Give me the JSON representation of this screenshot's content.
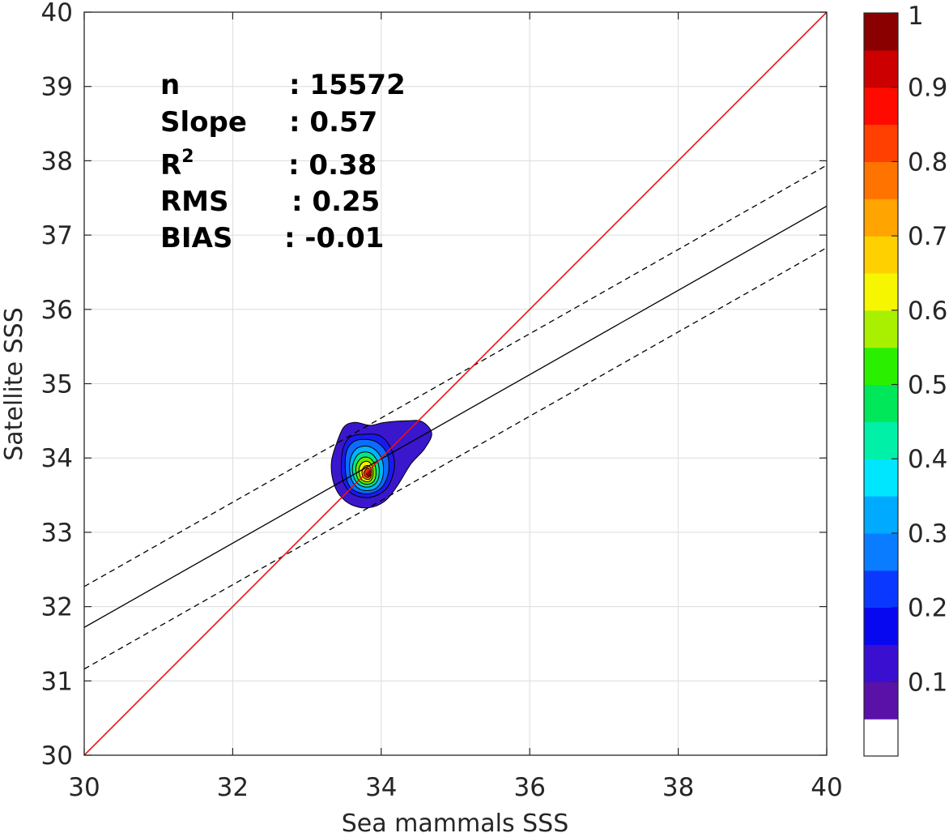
{
  "chart_data": {
    "type": "contour",
    "xlabel": "Sea mammals  SSS",
    "ylabel": "Satellite SSS",
    "xlim": [
      30,
      40
    ],
    "ylim": [
      30,
      40
    ],
    "x_ticks": [
      "30",
      "32",
      "34",
      "36",
      "38",
      "40"
    ],
    "y_ticks": [
      "30",
      "31",
      "32",
      "33",
      "34",
      "35",
      "36",
      "37",
      "38",
      "39",
      "40"
    ],
    "grid": true,
    "stats": [
      {
        "label": "n",
        "value": ": 15572"
      },
      {
        "label": "Slope",
        "value": ": 0.57"
      },
      {
        "label": "R",
        "sup": "2",
        "value": ": 0.38"
      },
      {
        "label": "RMS",
        "value": ": 0.25"
      },
      {
        "label": "BIAS",
        "value": ": -0.01"
      }
    ],
    "lines": {
      "identity": {
        "color": "#e3141c",
        "points": [
          [
            30,
            30
          ],
          [
            40,
            40
          ]
        ]
      },
      "fit": {
        "color": "#000000",
        "points": [
          [
            30,
            31.72
          ],
          [
            40,
            37.39
          ]
        ]
      },
      "fit_upper": {
        "color": "#000000",
        "dashed": true,
        "points": [
          [
            30,
            32.27
          ],
          [
            40,
            37.94
          ]
        ]
      },
      "fit_lower": {
        "color": "#000000",
        "dashed": true,
        "points": [
          [
            30,
            31.16
          ],
          [
            40,
            36.83
          ]
        ]
      }
    },
    "density_peak": {
      "x": 33.85,
      "y": 33.8
    },
    "contour_levels": [
      {
        "level": 0.05,
        "color": "#3a17cc",
        "outline": [
          [
            33.4,
            34.2
          ],
          [
            33.5,
            34.42
          ],
          [
            33.65,
            34.48
          ],
          [
            33.85,
            34.44
          ],
          [
            34.05,
            34.48
          ],
          [
            34.35,
            34.5
          ],
          [
            34.55,
            34.49
          ],
          [
            34.68,
            34.33
          ],
          [
            34.58,
            34.12
          ],
          [
            34.4,
            33.92
          ],
          [
            34.22,
            33.63
          ],
          [
            34.05,
            33.42
          ],
          [
            33.83,
            33.33
          ],
          [
            33.6,
            33.37
          ],
          [
            33.44,
            33.5
          ],
          [
            33.35,
            33.7
          ],
          [
            33.33,
            33.95
          ]
        ]
      },
      {
        "level": 0.15,
        "color": "#1a1aee",
        "outline": [
          [
            33.48,
            34.1
          ],
          [
            33.58,
            34.28
          ],
          [
            33.78,
            34.32
          ],
          [
            33.98,
            34.3
          ],
          [
            34.12,
            34.15
          ],
          [
            34.18,
            33.9
          ],
          [
            34.1,
            33.63
          ],
          [
            33.95,
            33.5
          ],
          [
            33.75,
            33.47
          ],
          [
            33.57,
            33.55
          ],
          [
            33.47,
            33.75
          ]
        ]
      },
      {
        "level": 0.25,
        "color": "#0a6dff",
        "outline": [
          [
            33.53,
            34.08
          ],
          [
            33.63,
            34.22
          ],
          [
            33.8,
            34.25
          ],
          [
            33.96,
            34.2
          ],
          [
            34.08,
            34.05
          ],
          [
            34.1,
            33.82
          ],
          [
            34.02,
            33.62
          ],
          [
            33.88,
            33.53
          ],
          [
            33.72,
            33.53
          ],
          [
            33.58,
            33.61
          ],
          [
            33.52,
            33.8
          ]
        ]
      },
      {
        "level": 0.35,
        "color": "#00b4ff",
        "outline": [
          [
            33.58,
            33.97
          ],
          [
            33.66,
            34.12
          ],
          [
            33.8,
            34.16
          ],
          [
            33.93,
            34.1
          ],
          [
            34.02,
            33.95
          ],
          [
            34.02,
            33.74
          ],
          [
            33.94,
            33.6
          ],
          [
            33.81,
            33.56
          ],
          [
            33.68,
            33.6
          ],
          [
            33.59,
            33.74
          ]
        ]
      },
      {
        "level": 0.45,
        "color": "#00e887",
        "outline": [
          [
            33.62,
            33.92
          ],
          [
            33.69,
            34.05
          ],
          [
            33.81,
            34.08
          ],
          [
            33.91,
            34.02
          ],
          [
            33.97,
            33.88
          ],
          [
            33.96,
            33.72
          ],
          [
            33.89,
            33.63
          ],
          [
            33.78,
            33.61
          ],
          [
            33.68,
            33.66
          ],
          [
            33.62,
            33.78
          ]
        ]
      },
      {
        "level": 0.55,
        "color": "#6fe800",
        "outline": [
          [
            33.66,
            33.88
          ],
          [
            33.72,
            33.99
          ],
          [
            33.82,
            34.01
          ],
          [
            33.9,
            33.94
          ],
          [
            33.93,
            33.82
          ],
          [
            33.91,
            33.7
          ],
          [
            33.84,
            33.65
          ],
          [
            33.75,
            33.66
          ],
          [
            33.68,
            33.73
          ]
        ]
      },
      {
        "level": 0.65,
        "color": "#f2ef00",
        "outline": [
          [
            33.7,
            33.85
          ],
          [
            33.75,
            33.94
          ],
          [
            33.83,
            33.95
          ],
          [
            33.88,
            33.88
          ],
          [
            33.89,
            33.78
          ],
          [
            33.86,
            33.7
          ],
          [
            33.8,
            33.68
          ],
          [
            33.73,
            33.72
          ]
        ]
      },
      {
        "level": 0.75,
        "color": "#ff9a00",
        "outline": [
          [
            33.74,
            33.82
          ],
          [
            33.78,
            33.89
          ],
          [
            33.84,
            33.89
          ],
          [
            33.87,
            33.83
          ],
          [
            33.86,
            33.74
          ],
          [
            33.82,
            33.71
          ],
          [
            33.76,
            33.74
          ]
        ]
      },
      {
        "level": 0.85,
        "color": "#ff3a00",
        "outline": [
          [
            33.77,
            33.8
          ],
          [
            33.81,
            33.86
          ],
          [
            33.85,
            33.84
          ],
          [
            33.86,
            33.78
          ],
          [
            33.83,
            33.74
          ],
          [
            33.79,
            33.75
          ]
        ]
      },
      {
        "level": 0.95,
        "color": "#c40000",
        "outline": [
          [
            33.8,
            33.79
          ],
          [
            33.83,
            33.83
          ],
          [
            33.85,
            33.79
          ],
          [
            33.83,
            33.76
          ],
          [
            33.81,
            33.77
          ]
        ]
      }
    ],
    "colorbar": {
      "range": [
        0,
        1
      ],
      "ticks": [
        "0.1",
        "0.2",
        "0.3",
        "0.4",
        "0.5",
        "0.6",
        "0.7",
        "0.8",
        "0.9",
        "1"
      ],
      "bands": [
        {
          "from": 0.0,
          "to": 0.05,
          "color": "#ffffff"
        },
        {
          "from": 0.05,
          "to": 0.1,
          "color": "#5a11a8"
        },
        {
          "from": 0.1,
          "to": 0.15,
          "color": "#3a0fd0"
        },
        {
          "from": 0.15,
          "to": 0.2,
          "color": "#0808f0"
        },
        {
          "from": 0.2,
          "to": 0.25,
          "color": "#0a38ff"
        },
        {
          "from": 0.25,
          "to": 0.3,
          "color": "#0a7cff"
        },
        {
          "from": 0.3,
          "to": 0.35,
          "color": "#00aaff"
        },
        {
          "from": 0.35,
          "to": 0.4,
          "color": "#00e6ff"
        },
        {
          "from": 0.4,
          "to": 0.45,
          "color": "#00f0a8"
        },
        {
          "from": 0.45,
          "to": 0.5,
          "color": "#00e85a"
        },
        {
          "from": 0.5,
          "to": 0.55,
          "color": "#2af000"
        },
        {
          "from": 0.55,
          "to": 0.6,
          "color": "#a8f000"
        },
        {
          "from": 0.6,
          "to": 0.65,
          "color": "#f6f600"
        },
        {
          "from": 0.65,
          "to": 0.7,
          "color": "#ffd000"
        },
        {
          "from": 0.7,
          "to": 0.75,
          "color": "#ffa400"
        },
        {
          "from": 0.75,
          "to": 0.8,
          "color": "#ff7400"
        },
        {
          "from": 0.8,
          "to": 0.85,
          "color": "#ff4000"
        },
        {
          "from": 0.85,
          "to": 0.9,
          "color": "#ff0a00"
        },
        {
          "from": 0.9,
          "to": 0.95,
          "color": "#cc0000"
        },
        {
          "from": 0.95,
          "to": 1.0,
          "color": "#8a0000"
        }
      ]
    }
  }
}
